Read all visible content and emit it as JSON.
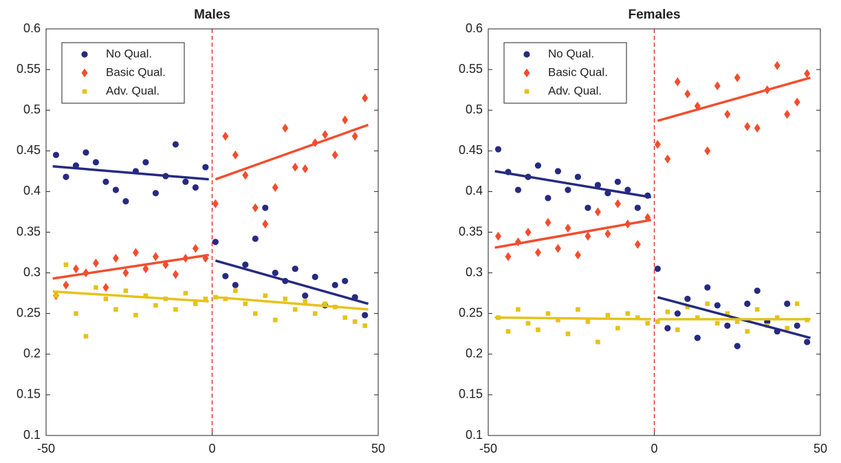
{
  "chart_data": [
    {
      "type": "scatter",
      "title": "Males",
      "xlim": [
        -50,
        50
      ],
      "ylim": [
        0.1,
        0.6
      ],
      "xticks": [
        -50,
        0,
        50
      ],
      "yticks": [
        0.1,
        0.15,
        0.2,
        0.25,
        0.3,
        0.35,
        0.4,
        0.45,
        0.5,
        0.55,
        0.6
      ],
      "legend": "upper left",
      "cutoff_x": 0,
      "x": [
        -47,
        -44,
        -41,
        -38,
        -35,
        -32,
        -29,
        -26,
        -23,
        -20,
        -17,
        -14,
        -11,
        -8,
        -5,
        -2,
        1,
        4,
        7,
        10,
        13,
        16,
        19,
        22,
        25,
        28,
        31,
        34,
        37,
        40,
        43,
        46
      ],
      "series": [
        {
          "name": "No Qual.",
          "color": "#262a80",
          "marker": "circle",
          "values": [
            0.445,
            0.418,
            0.432,
            0.448,
            0.436,
            0.412,
            0.402,
            0.388,
            0.425,
            0.436,
            0.398,
            0.419,
            0.458,
            0.412,
            0.405,
            0.43,
            0.338,
            0.296,
            0.285,
            0.31,
            0.342,
            0.38,
            0.3,
            0.29,
            0.305,
            0.272,
            0.295,
            0.26,
            0.285,
            0.29,
            0.27,
            0.248
          ],
          "fit": [
            {
              "x": [
                -48,
                -1
              ],
              "values": [
                0.431,
                0.415
              ]
            },
            {
              "x": [
                1,
                47
              ],
              "values": [
                0.315,
                0.262
              ]
            }
          ]
        },
        {
          "name": "Basic Qual.",
          "color": "#f24d2e",
          "marker": "diamond",
          "values": [
            0.272,
            0.285,
            0.305,
            0.3,
            0.312,
            0.282,
            0.318,
            0.3,
            0.325,
            0.305,
            0.32,
            0.31,
            0.298,
            0.318,
            0.33,
            0.318,
            0.385,
            0.468,
            0.445,
            0.42,
            0.38,
            0.36,
            0.405,
            0.478,
            0.43,
            0.428,
            0.46,
            0.47,
            0.445,
            0.488,
            0.468,
            0.515
          ],
          "fit": [
            {
              "x": [
                -48,
                -1
              ],
              "values": [
                0.293,
                0.322
              ]
            },
            {
              "x": [
                1,
                47
              ],
              "values": [
                0.415,
                0.482
              ]
            }
          ]
        },
        {
          "name": "Adv. Qual.",
          "color": "#e6c21a",
          "marker": "square",
          "values": [
            0.272,
            0.31,
            0.25,
            0.222,
            0.282,
            0.268,
            0.255,
            0.278,
            0.248,
            0.272,
            0.26,
            0.268,
            0.255,
            0.275,
            0.262,
            0.268,
            0.27,
            0.268,
            0.278,
            0.262,
            0.25,
            0.272,
            0.242,
            0.268,
            0.255,
            0.265,
            0.25,
            0.262,
            0.258,
            0.245,
            0.24,
            0.235
          ],
          "fit": [
            {
              "x": [
                -48,
                -1
              ],
              "values": [
                0.277,
                0.265
              ]
            },
            {
              "x": [
                1,
                47
              ],
              "values": [
                0.27,
                0.255
              ]
            }
          ]
        }
      ]
    },
    {
      "type": "scatter",
      "title": "Females",
      "xlim": [
        -50,
        50
      ],
      "ylim": [
        0.1,
        0.6
      ],
      "xticks": [
        -50,
        0,
        50
      ],
      "yticks": [
        0.1,
        0.15,
        0.2,
        0.25,
        0.3,
        0.35,
        0.4,
        0.45,
        0.5,
        0.55,
        0.6
      ],
      "legend": "upper left",
      "cutoff_x": 0,
      "x": [
        -47,
        -44,
        -41,
        -38,
        -35,
        -32,
        -29,
        -26,
        -23,
        -20,
        -17,
        -14,
        -11,
        -8,
        -5,
        -2,
        1,
        4,
        7,
        10,
        13,
        16,
        19,
        22,
        25,
        28,
        31,
        34,
        37,
        40,
        43,
        46
      ],
      "series": [
        {
          "name": "No Qual.",
          "color": "#262a80",
          "marker": "circle",
          "values": [
            0.452,
            0.424,
            0.402,
            0.418,
            0.432,
            0.392,
            0.425,
            0.402,
            0.418,
            0.38,
            0.408,
            0.398,
            0.412,
            0.402,
            0.38,
            0.395,
            0.305,
            0.232,
            0.25,
            0.268,
            0.22,
            0.282,
            0.26,
            0.235,
            0.21,
            0.262,
            0.278,
            0.24,
            0.228,
            0.262,
            0.235,
            0.215
          ],
          "fit": [
            {
              "x": [
                -48,
                -1
              ],
              "values": [
                0.425,
                0.393
              ]
            },
            {
              "x": [
                1,
                47
              ],
              "values": [
                0.27,
                0.22
              ]
            }
          ]
        },
        {
          "name": "Basic Qual.",
          "color": "#f24d2e",
          "marker": "diamond",
          "values": [
            0.345,
            0.32,
            0.338,
            0.35,
            0.325,
            0.362,
            0.33,
            0.355,
            0.322,
            0.345,
            0.375,
            0.348,
            0.385,
            0.36,
            0.335,
            0.368,
            0.458,
            0.44,
            0.535,
            0.52,
            0.505,
            0.45,
            0.53,
            0.495,
            0.54,
            0.48,
            0.478,
            0.525,
            0.555,
            0.495,
            0.51,
            0.545
          ],
          "fit": [
            {
              "x": [
                -48,
                -1
              ],
              "values": [
                0.331,
                0.365
              ]
            },
            {
              "x": [
                1,
                47
              ],
              "values": [
                0.487,
                0.54
              ]
            }
          ]
        },
        {
          "name": "Adv. Qual.",
          "color": "#e6c21a",
          "marker": "square",
          "values": [
            0.245,
            0.228,
            0.255,
            0.238,
            0.23,
            0.25,
            0.242,
            0.225,
            0.255,
            0.24,
            0.215,
            0.248,
            0.232,
            0.25,
            0.245,
            0.238,
            0.24,
            0.252,
            0.23,
            0.258,
            0.245,
            0.262,
            0.238,
            0.25,
            0.24,
            0.228,
            0.255,
            0.235,
            0.245,
            0.232,
            0.262,
            0.242
          ],
          "fit": [
            {
              "x": [
                -48,
                -1
              ],
              "values": [
                0.245,
                0.243
              ]
            },
            {
              "x": [
                1,
                47
              ],
              "values": [
                0.243,
                0.243
              ]
            }
          ]
        }
      ]
    }
  ]
}
